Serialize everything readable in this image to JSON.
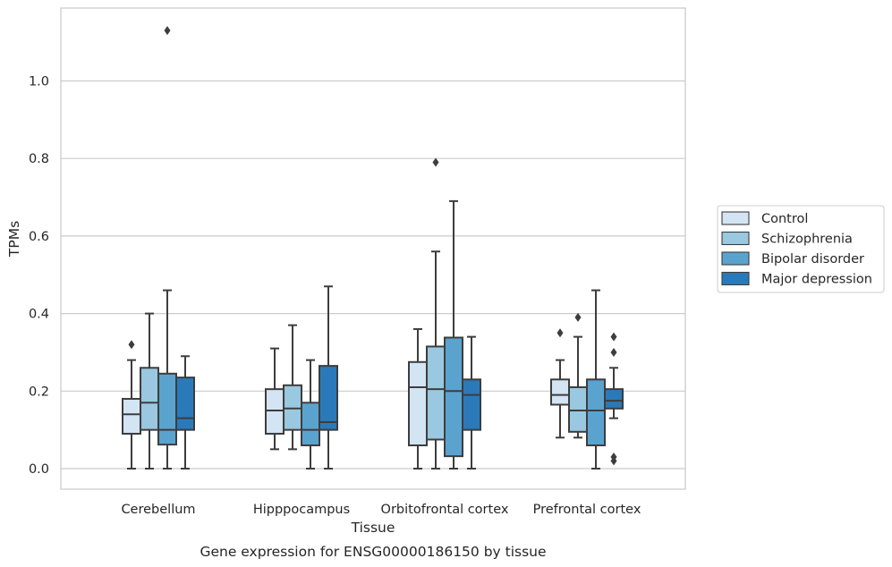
{
  "chart_data": {
    "type": "boxplot",
    "title": "",
    "xlabel": "Tissue",
    "ylabel": "TPMs",
    "caption": "Gene expression for ENSG00000186150 by tissue",
    "ylim": [
      -0.055,
      1.18
    ],
    "yticks": [
      0.0,
      0.2,
      0.4,
      0.6,
      0.8,
      1.0
    ],
    "ytick_labels": [
      "0.0",
      "0.2",
      "0.4",
      "0.6",
      "0.8",
      "1.0"
    ],
    "grid": "horizontal",
    "legend_position": "right",
    "categories": [
      "Cerebellum",
      "Hipppocampus",
      "Orbitofrontal cortex",
      "Prefrontal cortex"
    ],
    "series": [
      {
        "name": "Control",
        "color": "#d3e4f3",
        "boxes": [
          {
            "whislo": 0.0,
            "q1": 0.09,
            "med": 0.14,
            "q3": 0.18,
            "whishi": 0.28,
            "fliers": [
              0.32
            ]
          },
          {
            "whislo": 0.05,
            "q1": 0.09,
            "med": 0.15,
            "q3": 0.205,
            "whishi": 0.31,
            "fliers": []
          },
          {
            "whislo": 0.0,
            "q1": 0.06,
            "med": 0.21,
            "q3": 0.275,
            "whishi": 0.36,
            "fliers": []
          },
          {
            "whislo": 0.08,
            "q1": 0.165,
            "med": 0.19,
            "q3": 0.23,
            "whishi": 0.28,
            "fliers": [
              0.35
            ]
          }
        ]
      },
      {
        "name": "Schizophrenia",
        "color": "#9ac8e0",
        "boxes": [
          {
            "whislo": 0.0,
            "q1": 0.1,
            "med": 0.17,
            "q3": 0.26,
            "whishi": 0.4,
            "fliers": []
          },
          {
            "whislo": 0.05,
            "q1": 0.1,
            "med": 0.155,
            "q3": 0.215,
            "whishi": 0.37,
            "fliers": []
          },
          {
            "whislo": 0.0,
            "q1": 0.075,
            "med": 0.205,
            "q3": 0.315,
            "whishi": 0.56,
            "fliers": [
              0.79
            ]
          },
          {
            "whislo": 0.08,
            "q1": 0.095,
            "med": 0.15,
            "q3": 0.21,
            "whishi": 0.34,
            "fliers": [
              0.39
            ]
          }
        ]
      },
      {
        "name": "Bipolar disorder",
        "color": "#5ba3cf",
        "boxes": [
          {
            "whislo": 0.0,
            "q1": 0.062,
            "med": 0.1,
            "q3": 0.245,
            "whishi": 0.46,
            "fliers": [
              1.13
            ]
          },
          {
            "whislo": 0.0,
            "q1": 0.06,
            "med": 0.1,
            "q3": 0.17,
            "whishi": 0.28,
            "fliers": []
          },
          {
            "whislo": 0.0,
            "q1": 0.032,
            "med": 0.2,
            "q3": 0.338,
            "whishi": 0.69,
            "fliers": []
          },
          {
            "whislo": 0.0,
            "q1": 0.06,
            "med": 0.15,
            "q3": 0.23,
            "whishi": 0.46,
            "fliers": []
          }
        ]
      },
      {
        "name": "Major depression",
        "color": "#2a7ab9",
        "boxes": [
          {
            "whislo": 0.0,
            "q1": 0.1,
            "med": 0.13,
            "q3": 0.235,
            "whishi": 0.29,
            "fliers": []
          },
          {
            "whislo": 0.0,
            "q1": 0.1,
            "med": 0.12,
            "q3": 0.265,
            "whishi": 0.47,
            "fliers": []
          },
          {
            "whislo": 0.0,
            "q1": 0.1,
            "med": 0.19,
            "q3": 0.23,
            "whishi": 0.34,
            "fliers": []
          },
          {
            "whislo": 0.13,
            "q1": 0.155,
            "med": 0.175,
            "q3": 0.205,
            "whishi": 0.26,
            "fliers": [
              0.02,
              0.03,
              0.3,
              0.34
            ]
          }
        ]
      }
    ]
  }
}
